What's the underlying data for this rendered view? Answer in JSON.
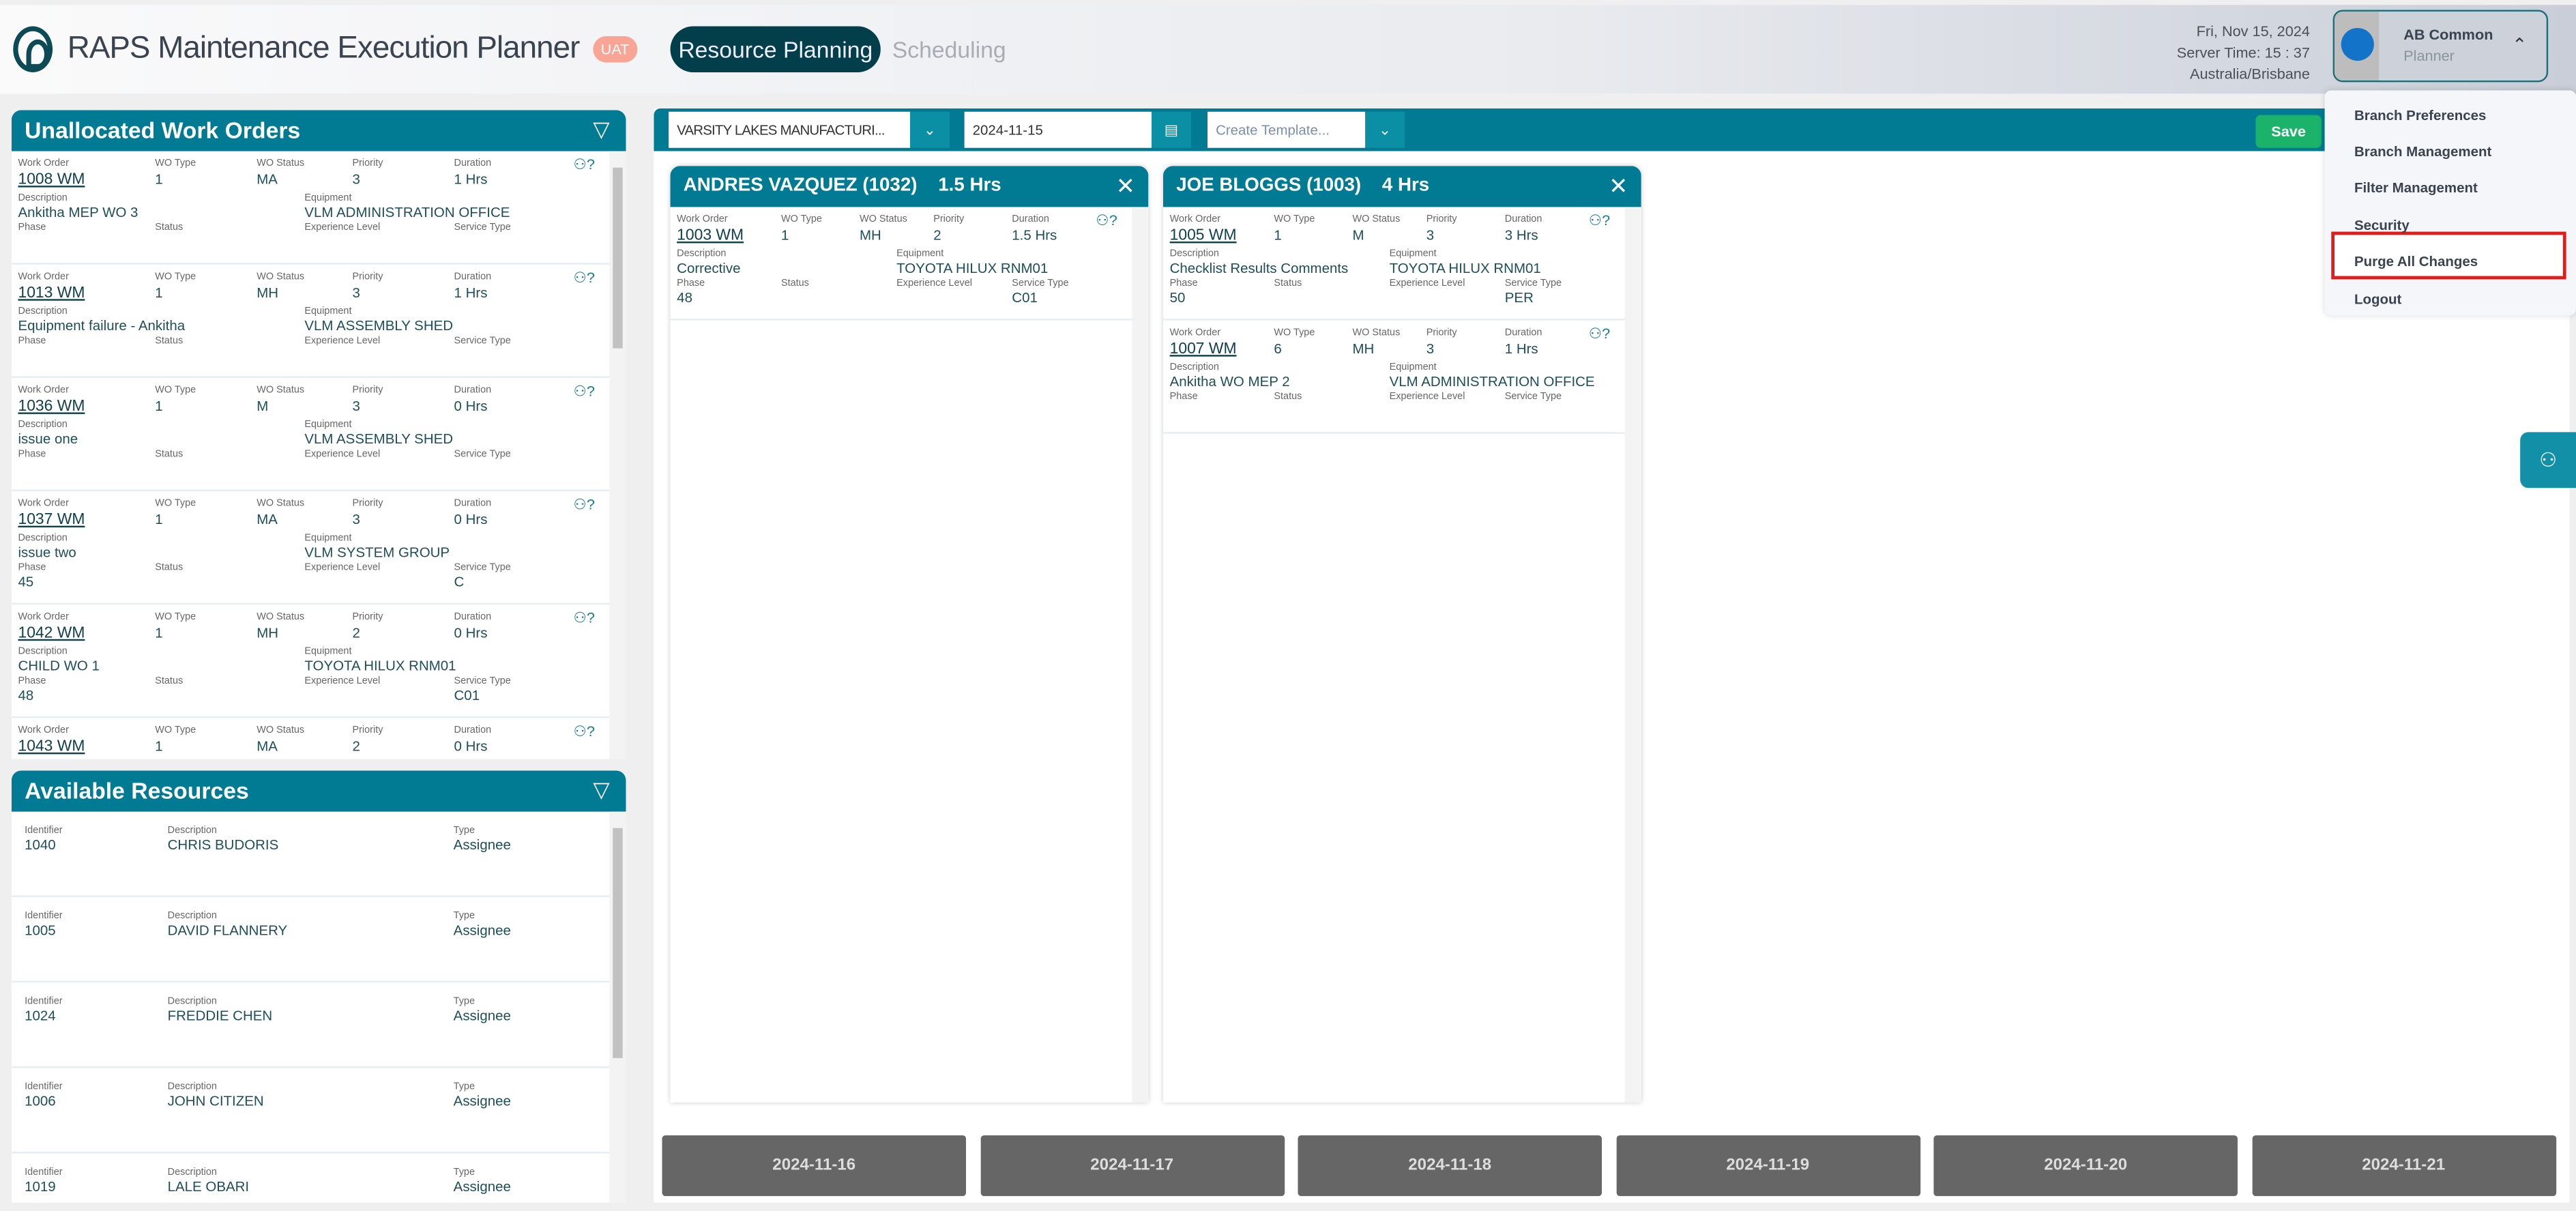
{
  "header": {
    "title": "RAPS Maintenance Execution Planner",
    "env_badge": "UAT",
    "tabs": [
      {
        "label": "Resource Planning",
        "active": true
      },
      {
        "label": "Scheduling",
        "active": false
      }
    ],
    "date": "Fri, Nov 15, 2024",
    "server_time": "Server Time: 15 : 37",
    "timezone": "Australia/Brisbane",
    "user": {
      "name": "AB Common",
      "role": "Planner"
    }
  },
  "user_menu": {
    "items": [
      "Branch Preferences",
      "Branch Management",
      "Filter Management",
      "Security",
      "Purge All Changes",
      "Logout"
    ],
    "highlighted": "Purge All Changes",
    "highlight_color": "#e21b1b"
  },
  "labels": {
    "work_order": "Work Order",
    "wo_type": "WO Type",
    "wo_status": "WO Status",
    "priority": "Priority",
    "duration": "Duration",
    "description": "Description",
    "equipment": "Equipment",
    "phase": "Phase",
    "status": "Status",
    "experience_level": "Experience Level",
    "service_type": "Service Type",
    "identifier": "Identifier",
    "type": "Type"
  },
  "unallocated": {
    "title": "Unallocated Work Orders",
    "items": [
      {
        "wo": "1008 WM",
        "type": "1",
        "status": "MA",
        "priority": "3",
        "duration": "1 Hrs",
        "description": "Ankitha MEP WO 3",
        "equipment": "VLM ADMINISTRATION OFFICE",
        "phase": "",
        "service": ""
      },
      {
        "wo": "1013 WM",
        "type": "1",
        "status": "MH",
        "priority": "3",
        "duration": "1 Hrs",
        "description": "Equipment failure - Ankitha",
        "equipment": "VLM ASSEMBLY SHED",
        "phase": "",
        "service": ""
      },
      {
        "wo": "1036 WM",
        "type": "1",
        "status": "M",
        "priority": "3",
        "duration": "0 Hrs",
        "description": "issue one",
        "equipment": "VLM ASSEMBLY SHED",
        "phase": "",
        "service": ""
      },
      {
        "wo": "1037 WM",
        "type": "1",
        "status": "MA",
        "priority": "3",
        "duration": "0 Hrs",
        "description": "issue two",
        "equipment": "VLM SYSTEM GROUP",
        "phase": "45",
        "service": "C"
      },
      {
        "wo": "1042 WM",
        "type": "1",
        "status": "MH",
        "priority": "2",
        "duration": "0 Hrs",
        "description": "CHILD WO 1",
        "equipment": "TOYOTA HILUX RNM01",
        "phase": "48",
        "service": "C01"
      },
      {
        "wo": "1043 WM",
        "type": "1",
        "status": "MA",
        "priority": "2",
        "duration": "0 Hrs",
        "description": "",
        "equipment": "",
        "phase": "",
        "service": ""
      }
    ]
  },
  "available": {
    "title": "Available Resources",
    "items": [
      {
        "id": "1040",
        "description": "CHRIS BUDORIS",
        "type": "Assignee"
      },
      {
        "id": "1005",
        "description": "DAVID FLANNERY",
        "type": "Assignee"
      },
      {
        "id": "1024",
        "description": "FREDDIE CHEN",
        "type": "Assignee"
      },
      {
        "id": "1006",
        "description": "JOHN CITIZEN",
        "type": "Assignee"
      },
      {
        "id": "1019",
        "description": "LALE OBARI",
        "type": "Assignee"
      }
    ]
  },
  "toolbar": {
    "branch": "VARSITY LAKES MANUFACTURI...",
    "date": "2024-11-15",
    "template_placeholder": "Create Template...",
    "save": "Save"
  },
  "resources": [
    {
      "name": "ANDRES VAZQUEZ (1032)",
      "hours": "1.5 Hrs",
      "items": [
        {
          "wo": "1003 WM",
          "type": "1",
          "status": "MH",
          "priority": "2",
          "duration": "1.5 Hrs",
          "description": "Corrective",
          "equipment": "TOYOTA HILUX RNM01",
          "phase": "48",
          "service": "C01"
        }
      ]
    },
    {
      "name": "JOE BLOGGS (1003)",
      "hours": "4 Hrs",
      "items": [
        {
          "wo": "1005 WM",
          "type": "1",
          "status": "M",
          "priority": "3",
          "duration": "3 Hrs",
          "description": "Checklist Results Comments",
          "equipment": "TOYOTA HILUX RNM01",
          "phase": "50",
          "service": "PER"
        },
        {
          "wo": "1007 WM",
          "type": "6",
          "status": "MH",
          "priority": "3",
          "duration": "1 Hrs",
          "description": "Ankitha WO MEP 2",
          "equipment": "VLM ADMINISTRATION OFFICE",
          "phase": "",
          "service": ""
        }
      ]
    }
  ],
  "dates": [
    "2024-11-16",
    "2024-11-17",
    "2024-11-18",
    "2024-11-19",
    "2024-11-20",
    "2024-11-21"
  ],
  "colors": {
    "primary": "#007b93",
    "nav_active": "#023f4b",
    "save": "#1bb36a",
    "date_button": "#666666"
  }
}
